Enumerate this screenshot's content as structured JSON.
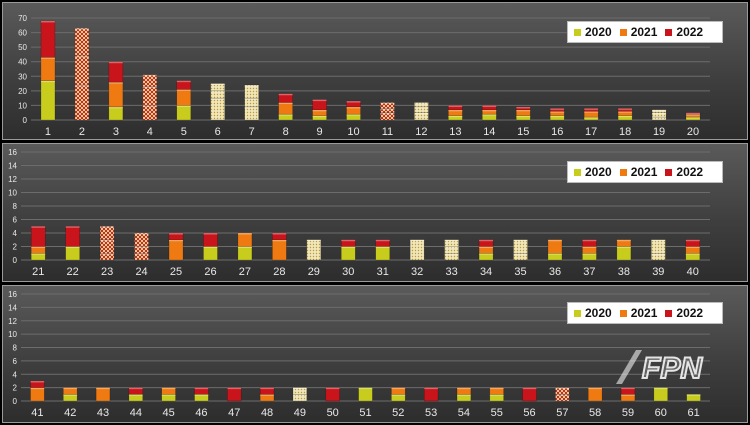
{
  "legend": [
    "2020",
    "2021",
    "2022"
  ],
  "colors": {
    "2020": "#c8cc1c",
    "2021": "#f07a12",
    "2022": "#c8141a",
    "pattern_a": "#e8c98a",
    "pattern_b": "#c03028"
  },
  "watermark_text": "FPN",
  "chart_data": [
    {
      "type": "bar",
      "stacked": true,
      "ylim": [
        0,
        70
      ],
      "yticks": [
        0,
        10,
        20,
        30,
        40,
        50,
        60,
        70
      ],
      "grid": true,
      "legend_position": "top-right",
      "categories": [
        "1",
        "2",
        "3",
        "4",
        "5",
        "6",
        "7",
        "8",
        "9",
        "10",
        "11",
        "12",
        "13",
        "14",
        "15",
        "16",
        "17",
        "18",
        "19",
        "20"
      ],
      "series": [
        {
          "name": "2020",
          "values": [
            27,
            24,
            9,
            10,
            10,
            15,
            9,
            4,
            3,
            4,
            5,
            5,
            3,
            4,
            3,
            3,
            2,
            3,
            2,
            2
          ]
        },
        {
          "name": "2021",
          "values": [
            16,
            20,
            17,
            13,
            11,
            5,
            6,
            8,
            4,
            5,
            3,
            4,
            4,
            3,
            4,
            3,
            4,
            3,
            3,
            2
          ]
        },
        {
          "name": "2022",
          "values": [
            25,
            19,
            14,
            8,
            6,
            5,
            9,
            6,
            7,
            4,
            4,
            3,
            3,
            3,
            2,
            2,
            2,
            2,
            2,
            1
          ]
        }
      ]
    },
    {
      "type": "bar",
      "stacked": true,
      "ylim": [
        0,
        16
      ],
      "yticks": [
        0,
        2,
        4,
        6,
        8,
        10,
        12,
        14,
        16
      ],
      "grid": true,
      "legend_position": "top-right",
      "categories": [
        "21",
        "22",
        "23",
        "24",
        "25",
        "26",
        "27",
        "28",
        "29",
        "30",
        "31",
        "32",
        "33",
        "34",
        "35",
        "36",
        "37",
        "38",
        "39",
        "40"
      ],
      "series": [
        {
          "name": "2020",
          "values": [
            1,
            2,
            1,
            1,
            0,
            2,
            2,
            0,
            0,
            2,
            2,
            0,
            1,
            1,
            1,
            1,
            1,
            2,
            1,
            1
          ]
        },
        {
          "name": "2021",
          "values": [
            1,
            0,
            2,
            1,
            3,
            0,
            2,
            3,
            3,
            0,
            0,
            3,
            1,
            1,
            2,
            2,
            1,
            1,
            2,
            1
          ]
        },
        {
          "name": "2022",
          "values": [
            3,
            3,
            2,
            2,
            1,
            2,
            0,
            1,
            0,
            1,
            1,
            0,
            1,
            1,
            0,
            0,
            1,
            0,
            0,
            1
          ]
        }
      ]
    },
    {
      "type": "bar",
      "stacked": true,
      "ylim": [
        0,
        16
      ],
      "yticks": [
        0,
        2,
        4,
        6,
        8,
        10,
        12,
        14,
        16
      ],
      "grid": true,
      "legend_position": "top-right",
      "categories": [
        "41",
        "42",
        "43",
        "44",
        "45",
        "46",
        "47",
        "48",
        "49",
        "50",
        "51",
        "52",
        "53",
        "54",
        "55",
        "56",
        "57",
        "58",
        "59",
        "60",
        "61"
      ],
      "series": [
        {
          "name": "2020",
          "values": [
            0,
            1,
            0,
            1,
            1,
            1,
            0,
            0,
            1,
            0,
            2,
            1,
            0,
            1,
            1,
            0,
            0,
            0,
            0,
            2,
            1
          ]
        },
        {
          "name": "2021",
          "values": [
            2,
            1,
            2,
            0,
            1,
            0,
            0,
            1,
            0,
            0,
            0,
            1,
            0,
            1,
            1,
            0,
            1,
            2,
            1,
            0,
            0
          ]
        },
        {
          "name": "2022",
          "values": [
            1,
            0,
            0,
            1,
            0,
            1,
            2,
            1,
            1,
            2,
            0,
            0,
            2,
            0,
            0,
            2,
            1,
            0,
            1,
            0,
            0
          ]
        }
      ]
    }
  ]
}
